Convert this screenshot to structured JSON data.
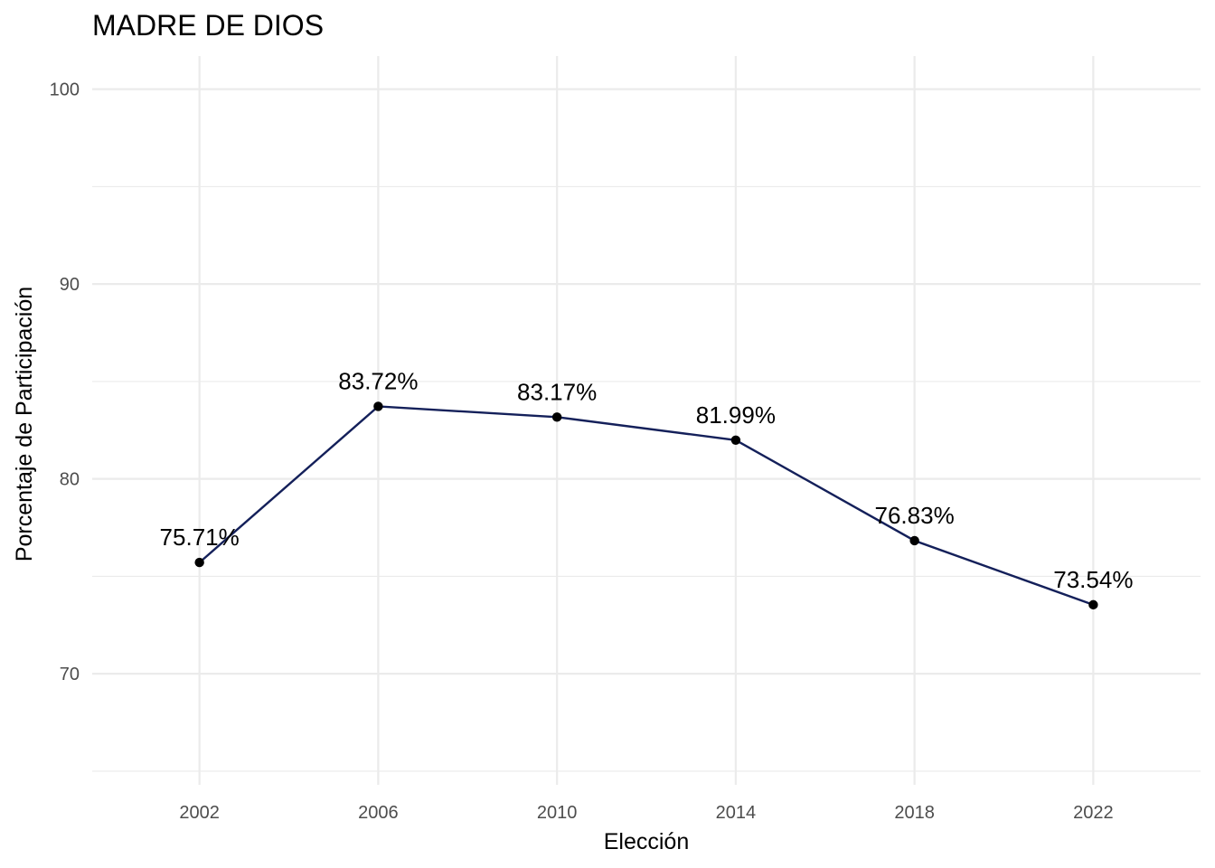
{
  "chart_data": {
    "type": "line",
    "title": "MADRE DE DIOS",
    "xlabel": "Elección",
    "ylabel": "Porcentaje de Participación",
    "x": [
      2002,
      2006,
      2010,
      2014,
      2018,
      2022
    ],
    "values": [
      75.71,
      83.72,
      83.17,
      81.99,
      76.83,
      73.54
    ],
    "data_labels": [
      "75.71%",
      "83.72%",
      "83.17%",
      "81.99%",
      "76.83%",
      "73.54%"
    ],
    "x_ticks": [
      2002,
      2006,
      2010,
      2014,
      2018,
      2022
    ],
    "y_ticks": [
      70,
      80,
      90,
      100
    ],
    "xlim": [
      1999.6,
      2024.4
    ],
    "ylim": [
      64.3,
      101.7
    ],
    "grid": true,
    "legend": "none",
    "colors": {
      "line": "#14205a",
      "point": "#000000"
    }
  }
}
